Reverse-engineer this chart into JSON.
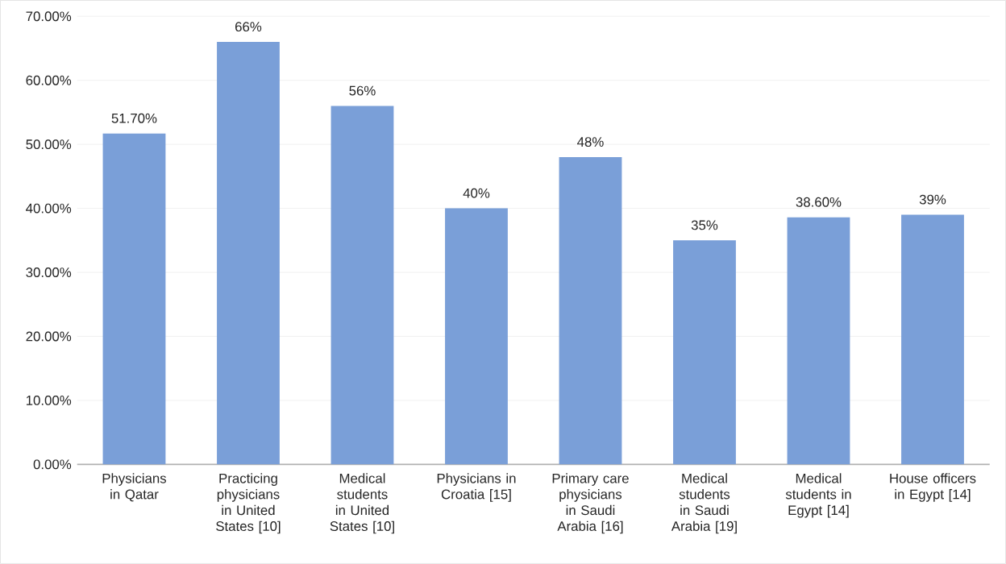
{
  "chart_data": {
    "type": "bar",
    "categories": [
      "Physicians in Qatar",
      "Practicing physicians in United States [10]",
      "Medical students in United States [10]",
      "Physicians in Croatia [15]",
      "Primary care physicians in Saudi Arabia [16]",
      "Medical students in Saudi Arabia [19]",
      "Medical students in Egypt [14]",
      "House officers in Egypt [14]"
    ],
    "values": [
      51.7,
      66,
      56,
      40,
      48,
      35,
      38.6,
      39
    ],
    "value_labels": [
      "51.70%",
      "66%",
      "56%",
      "40%",
      "48%",
      "35%",
      "38.60%",
      "39%"
    ],
    "color": "#7a9fd8",
    "ylim": [
      0,
      70
    ],
    "yticks": [
      {
        "value": 0,
        "label": "0.00%"
      },
      {
        "value": 10,
        "label": "10.00%"
      },
      {
        "value": 20,
        "label": "20.00%"
      },
      {
        "value": 30,
        "label": "30.00%"
      },
      {
        "value": 40,
        "label": "40.00%"
      },
      {
        "value": 50,
        "label": "50.00%"
      },
      {
        "value": 60,
        "label": "60.00%"
      },
      {
        "value": 70,
        "label": "70.00%"
      }
    ],
    "grid": "y"
  }
}
